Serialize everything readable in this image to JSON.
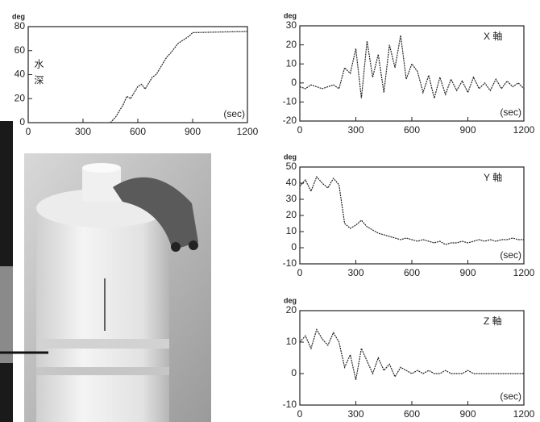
{
  "chart_data": [
    {
      "type": "line",
      "y_label": "deg",
      "side_label": "水深",
      "annotation": "(sec)",
      "x": [
        450,
        480,
        500,
        520,
        540,
        560,
        580,
        600,
        620,
        640,
        660,
        680,
        700,
        720,
        740,
        760,
        780,
        800,
        820,
        840,
        860,
        880,
        900,
        1200
      ],
      "values": [
        0,
        5,
        10,
        15,
        22,
        20,
        25,
        30,
        32,
        28,
        33,
        38,
        40,
        45,
        50,
        55,
        58,
        62,
        66,
        68,
        70,
        72,
        75,
        76
      ],
      "color": "#222222",
      "xlim": [
        0,
        1200
      ],
      "ylim": [
        0,
        80
      ],
      "xticks": [
        0,
        300,
        600,
        900,
        1200
      ],
      "yticks": [
        0,
        20,
        40,
        60,
        80
      ],
      "grid": false
    },
    {
      "type": "line",
      "y_label": "deg",
      "side_label": "X 軸",
      "annotation": "(sec)",
      "x": [
        0,
        30,
        60,
        90,
        120,
        150,
        180,
        210,
        240,
        270,
        300,
        330,
        360,
        390,
        420,
        450,
        480,
        510,
        540,
        570,
        600,
        630,
        660,
        690,
        720,
        750,
        780,
        810,
        840,
        870,
        900,
        930,
        960,
        990,
        1020,
        1050,
        1080,
        1110,
        1140,
        1170,
        1200
      ],
      "values": [
        -2,
        -3,
        -1,
        -2,
        -3,
        -2,
        -1,
        -3,
        8,
        5,
        18,
        -8,
        22,
        3,
        15,
        -5,
        20,
        8,
        25,
        2,
        10,
        6,
        -5,
        4,
        -8,
        3,
        -6,
        2,
        -4,
        1,
        -5,
        3,
        -3,
        0,
        -4,
        2,
        -3,
        1,
        -2,
        0,
        -3
      ],
      "color": "#222222",
      "xlim": [
        0,
        1200
      ],
      "ylim": [
        -20,
        30
      ],
      "xticks": [
        0,
        300,
        600,
        900,
        1200
      ],
      "yticks": [
        -20,
        -10,
        0,
        10,
        20,
        30
      ],
      "grid": false
    },
    {
      "type": "line",
      "y_label": "deg",
      "side_label": "Y 軸",
      "annotation": "(sec)",
      "x": [
        0,
        30,
        60,
        90,
        120,
        150,
        180,
        210,
        240,
        270,
        300,
        330,
        360,
        390,
        420,
        450,
        480,
        510,
        540,
        570,
        600,
        630,
        660,
        690,
        720,
        750,
        780,
        810,
        840,
        870,
        900,
        930,
        960,
        990,
        1020,
        1050,
        1080,
        1110,
        1140,
        1170,
        1200
      ],
      "values": [
        38,
        42,
        35,
        44,
        40,
        37,
        43,
        39,
        15,
        12,
        14,
        17,
        13,
        11,
        9,
        8,
        7,
        6,
        5,
        6,
        5,
        4,
        5,
        4,
        3,
        4,
        2,
        3,
        3,
        4,
        3,
        4,
        5,
        4,
        5,
        4,
        5,
        5,
        6,
        5,
        5
      ],
      "color": "#222222",
      "xlim": [
        0,
        1200
      ],
      "ylim": [
        -10,
        50
      ],
      "xticks": [
        0,
        300,
        600,
        900,
        1200
      ],
      "yticks": [
        -10,
        0,
        10,
        20,
        30,
        40,
        50
      ],
      "grid": false
    },
    {
      "type": "line",
      "y_label": "deg",
      "side_label": "Z 軸",
      "annotation": "(sec)",
      "x": [
        0,
        30,
        60,
        90,
        120,
        150,
        180,
        210,
        240,
        270,
        300,
        330,
        360,
        390,
        420,
        450,
        480,
        510,
        540,
        570,
        600,
        630,
        660,
        690,
        720,
        750,
        780,
        810,
        840,
        870,
        900,
        930,
        960,
        990,
        1020,
        1050,
        1080,
        1110,
        1140,
        1170,
        1200
      ],
      "values": [
        10,
        12,
        8,
        14,
        11,
        9,
        13,
        10,
        2,
        6,
        -2,
        8,
        4,
        0,
        5,
        1,
        3,
        -1,
        2,
        1,
        0,
        1,
        0,
        1,
        0,
        0,
        1,
        0,
        0,
        0,
        1,
        0,
        0,
        0,
        0,
        0,
        0,
        0,
        0,
        0,
        0
      ],
      "color": "#222222",
      "xlim": [
        0,
        1200
      ],
      "ylim": [
        -10,
        20
      ],
      "xticks": [
        0,
        300,
        600,
        900,
        1200
      ],
      "yticks": [
        -10,
        0,
        10,
        20
      ],
      "grid": false
    }
  ]
}
